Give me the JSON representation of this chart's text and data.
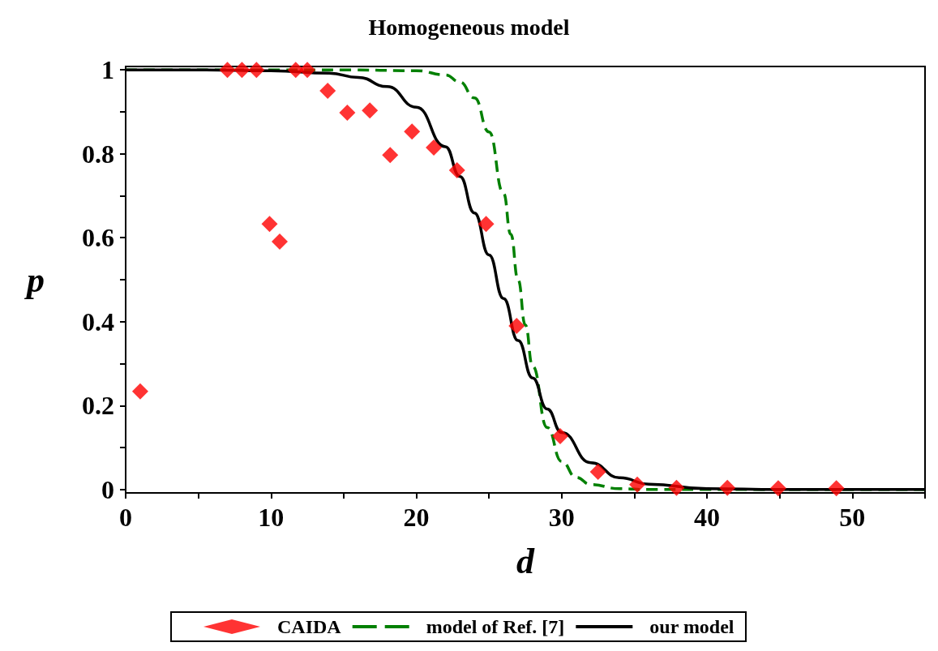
{
  "chart_data": {
    "type": "line",
    "title": "Homogeneous model",
    "xlabel": "d",
    "ylabel": "p",
    "xlim": [
      0,
      55
    ],
    "ylim": [
      -0.008,
      1.008
    ],
    "xticks": [
      0,
      {
        "value": 5,
        "label": null
      },
      10,
      {
        "value": 15,
        "label": null
      },
      20,
      {
        "value": 25,
        "label": null
      },
      30,
      {
        "value": 35,
        "label": null
      },
      40,
      {
        "value": 45,
        "label": null
      },
      50,
      {
        "value": 55,
        "label": null
      }
    ],
    "yticks": [
      0,
      {
        "value": 0.1,
        "label": null
      },
      0.2,
      {
        "value": 0.3,
        "label": null
      },
      0.4,
      {
        "value": 0.5,
        "label": null
      },
      0.6,
      {
        "value": 0.7,
        "label": null
      },
      0.8,
      {
        "value": 0.9,
        "label": null
      },
      1
    ],
    "grid": false,
    "legend": "bottom",
    "series": [
      {
        "name": "CAIDA",
        "type": "scatter",
        "marker": "diamond",
        "color": "#ff0000",
        "x": [
          1,
          7,
          8,
          9,
          9.9,
          10.6,
          11.7,
          12.5,
          13.9,
          15.25,
          16.8,
          18.2,
          19.7,
          21.2,
          22.8,
          24.8,
          26.9,
          29.9,
          32.5,
          35.2,
          37.9,
          41.4,
          44.9,
          48.9
        ],
        "values": [
          0.234,
          1,
          1,
          1,
          0.633,
          0.591,
          1,
          1,
          0.95,
          0.898,
          0.903,
          0.797,
          0.853,
          0.815,
          0.761,
          0.633,
          0.39,
          0.127,
          0.042,
          0.012,
          0.004,
          0.004,
          0.003,
          0.003
        ]
      },
      {
        "name": "model of Ref. [7]",
        "type": "line",
        "marker": "none",
        "line_style": "dashed",
        "color": "#008000",
        "x": [
          0,
          10,
          15,
          20,
          22,
          23,
          24,
          25,
          26,
          26.5,
          27,
          27.5,
          28,
          29,
          30,
          31,
          32,
          34,
          36,
          40,
          55
        ],
        "values": [
          1,
          1,
          1,
          0.998,
          0.988,
          0.971,
          0.933,
          0.852,
          0.706,
          0.608,
          0.5,
          0.392,
          0.294,
          0.148,
          0.067,
          0.029,
          0.012,
          0.002,
          0,
          0,
          0
        ]
      },
      {
        "name": "our model",
        "type": "line",
        "marker": "none",
        "line_style": "solid",
        "color": "#000000",
        "x": [
          0,
          5,
          10,
          14,
          16,
          18,
          20,
          22,
          23,
          24,
          25,
          26,
          27,
          28,
          29,
          30,
          32,
          34,
          36,
          40,
          45,
          55
        ],
        "values": [
          1,
          1,
          0.998,
          0.992,
          0.982,
          0.96,
          0.911,
          0.817,
          0.746,
          0.659,
          0.559,
          0.455,
          0.355,
          0.266,
          0.192,
          0.136,
          0.064,
          0.028,
          0.013,
          0.002,
          0,
          0
        ]
      }
    ]
  }
}
